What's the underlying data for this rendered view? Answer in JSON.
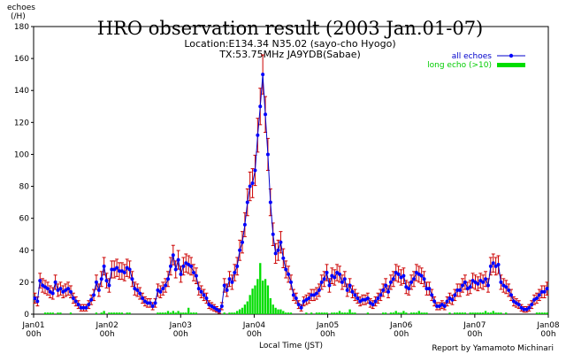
{
  "chart_data": {
    "type": "line",
    "title": "HRO observation result (2003 Jan.01-07)",
    "subtitle_location": "Location:E134.34 N35.02 (sayo-cho Hyogo)",
    "subtitle_tx": "TX:53.75MHz  JA9YDB(Sabae)",
    "ylabel_line1": "echoes",
    "ylabel_line2": "(/H)",
    "xlabel": "Local Time (JST)",
    "credit": "Report by Yamamoto Michinari",
    "ylim": [
      0,
      180
    ],
    "yticks": [
      "0",
      "20",
      "40",
      "60",
      "80",
      "100",
      "120",
      "140",
      "160",
      "180"
    ],
    "xlim_hours": [
      0,
      168
    ],
    "xticks": [
      {
        "day": "Jan01",
        "hour": "00h",
        "h": 0
      },
      {
        "day": "Jan02",
        "hour": "00h",
        "h": 24
      },
      {
        "day": "Jan03",
        "hour": "00h",
        "h": 48
      },
      {
        "day": "Jan04",
        "hour": "00h",
        "h": 72
      },
      {
        "day": "Jan05",
        "hour": "00h",
        "h": 96
      },
      {
        "day": "Jan06",
        "hour": "00h",
        "h": 120
      },
      {
        "day": "Jan07",
        "hour": "00h",
        "h": 144
      },
      {
        "day": "Jan08",
        "hour": "00h",
        "h": 168
      }
    ],
    "legend": {
      "placement": "top-right",
      "all_echoes": "all echoes",
      "long_echo": "long echo (>10)"
    },
    "colors": {
      "line": "#0000cc",
      "marker": "#0000ff",
      "error": "#cc0000",
      "bar": "#00dd00",
      "axis": "#000000"
    },
    "series": [
      {
        "name": "all echoes",
        "values": [
          10,
          8,
          21,
          18,
          17,
          16,
          14,
          13,
          20,
          15,
          16,
          14,
          15,
          16,
          14,
          10,
          8,
          6,
          4,
          4,
          4,
          6,
          9,
          12,
          20,
          15,
          22,
          30,
          21,
          18,
          28,
          28,
          29,
          27,
          27,
          26,
          29,
          28,
          22,
          16,
          15,
          13,
          10,
          8,
          7,
          7,
          5,
          7,
          15,
          14,
          16,
          18,
          22,
          30,
          37,
          28,
          34,
          25,
          30,
          32,
          31,
          30,
          26,
          24,
          16,
          14,
          12,
          10,
          6,
          5,
          4,
          3,
          2,
          5,
          18,
          15,
          22,
          20,
          26,
          30,
          40,
          45,
          56,
          70,
          80,
          82,
          90,
          112,
          130,
          150,
          125,
          100,
          70,
          50,
          38,
          40,
          45,
          35,
          28,
          25,
          20,
          12,
          10,
          6,
          4,
          8,
          9,
          10,
          12,
          12,
          13,
          15,
          20,
          22,
          26,
          18,
          24,
          23,
          26,
          25,
          20,
          22,
          15,
          18,
          14,
          12,
          10,
          8,
          9,
          9,
          10,
          7,
          6,
          8,
          10,
          12,
          15,
          18,
          14,
          20,
          22,
          26,
          25,
          23,
          24,
          17,
          16,
          20,
          22,
          26,
          25,
          24,
          22,
          16,
          16,
          12,
          8,
          5,
          5,
          6,
          5,
          8,
          10,
          9,
          12,
          15,
          15,
          18,
          20,
          16,
          17,
          21,
          20,
          19,
          21,
          20,
          22,
          18,
          30,
          32,
          30,
          31,
          20,
          18,
          17,
          15,
          12,
          8,
          7,
          6,
          4,
          3,
          3,
          4,
          6,
          9,
          10,
          12,
          14,
          14,
          16
        ]
      },
      {
        "name": "long echo (>10)",
        "values": [
          0,
          0,
          0,
          0,
          1,
          1,
          1,
          1,
          0,
          1,
          1,
          0,
          0,
          0,
          1,
          0,
          0,
          0,
          0,
          0,
          0,
          0,
          0,
          0,
          1,
          0,
          1,
          2,
          0,
          1,
          1,
          1,
          1,
          1,
          1,
          0,
          1,
          1,
          0,
          0,
          0,
          0,
          0,
          0,
          0,
          0,
          0,
          0,
          1,
          1,
          1,
          1,
          2,
          1,
          2,
          1,
          2,
          1,
          1,
          1,
          4,
          1,
          1,
          1,
          0,
          0,
          0,
          0,
          0,
          0,
          0,
          0,
          0,
          0,
          1,
          0,
          1,
          1,
          1,
          2,
          3,
          4,
          6,
          8,
          12,
          16,
          18,
          22,
          32,
          21,
          22,
          18,
          10,
          6,
          4,
          3,
          3,
          2,
          1,
          1,
          1,
          0,
          0,
          0,
          0,
          0,
          1,
          0,
          1,
          0,
          1,
          1,
          1,
          1,
          1,
          0,
          1,
          1,
          1,
          2,
          1,
          1,
          1,
          3,
          1,
          1,
          0,
          0,
          0,
          0,
          1,
          0,
          0,
          0,
          0,
          0,
          1,
          1,
          0,
          1,
          1,
          2,
          1,
          1,
          2,
          1,
          0,
          1,
          1,
          1,
          2,
          1,
          1,
          1,
          0,
          0,
          0,
          0,
          0,
          0,
          0,
          0,
          1,
          0,
          1,
          1,
          1,
          1,
          1,
          0,
          1,
          1,
          1,
          1,
          1,
          1,
          2,
          1,
          1,
          2,
          1,
          1,
          1,
          0,
          1,
          0,
          0,
          0,
          0,
          0,
          0,
          0,
          0,
          0,
          0,
          0,
          1,
          1,
          1,
          1,
          1
        ]
      }
    ]
  }
}
